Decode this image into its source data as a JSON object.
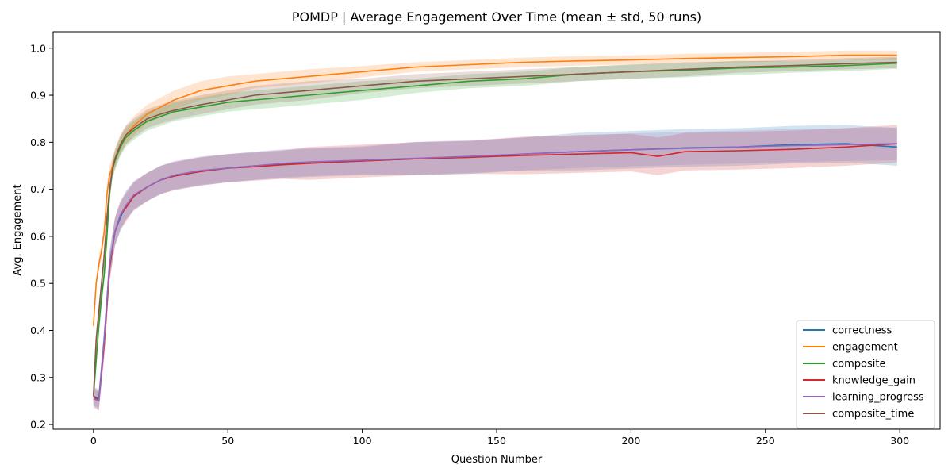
{
  "chart_data": {
    "type": "line",
    "title": "POMDP | Average Engagement Over Time (mean ± std, 50 runs)",
    "xlabel": "Question Number",
    "ylabel": "Avg. Engagement",
    "xlim": [
      -15,
      315
    ],
    "ylim": [
      0.19,
      1.035
    ],
    "xticks": [
      0,
      50,
      100,
      150,
      200,
      250,
      300
    ],
    "yticks": [
      0.2,
      0.3,
      0.4,
      0.5,
      0.6,
      0.7,
      0.8,
      0.9,
      1.0
    ],
    "grid": false,
    "legend_position": "lower-right",
    "series": [
      {
        "name": "correctness",
        "color": "#1f77b4",
        "x": [
          0,
          2,
          4,
          6,
          8,
          10,
          12,
          15,
          20,
          25,
          30,
          40,
          50,
          60,
          70,
          80,
          100,
          120,
          140,
          160,
          180,
          200,
          220,
          240,
          260,
          280,
          299
        ],
        "mean": [
          0.26,
          0.255,
          0.38,
          0.54,
          0.61,
          0.64,
          0.665,
          0.685,
          0.705,
          0.72,
          0.728,
          0.738,
          0.745,
          0.75,
          0.753,
          0.756,
          0.76,
          0.765,
          0.768,
          0.775,
          0.78,
          0.784,
          0.788,
          0.79,
          0.795,
          0.797,
          0.79
        ],
        "std": [
          0.02,
          0.02,
          0.03,
          0.03,
          0.03,
          0.03,
          0.03,
          0.03,
          0.03,
          0.03,
          0.03,
          0.03,
          0.03,
          0.03,
          0.03,
          0.03,
          0.03,
          0.035,
          0.035,
          0.035,
          0.04,
          0.04,
          0.04,
          0.04,
          0.04,
          0.04,
          0.04
        ]
      },
      {
        "name": "engagement",
        "color": "#ff7f0e",
        "x": [
          0,
          1,
          2,
          3,
          4,
          5,
          6,
          8,
          10,
          12,
          15,
          20,
          25,
          30,
          40,
          50,
          60,
          70,
          80,
          100,
          120,
          140,
          160,
          180,
          200,
          220,
          240,
          260,
          280,
          299
        ],
        "mean": [
          0.41,
          0.5,
          0.54,
          0.57,
          0.61,
          0.69,
          0.73,
          0.765,
          0.795,
          0.815,
          0.835,
          0.86,
          0.875,
          0.89,
          0.91,
          0.92,
          0.93,
          0.935,
          0.94,
          0.95,
          0.96,
          0.965,
          0.97,
          0.973,
          0.975,
          0.978,
          0.98,
          0.982,
          0.985,
          0.985
        ],
        "std": [
          0.01,
          0.01,
          0.015,
          0.015,
          0.015,
          0.02,
          0.02,
          0.02,
          0.02,
          0.02,
          0.02,
          0.02,
          0.02,
          0.02,
          0.02,
          0.02,
          0.015,
          0.015,
          0.015,
          0.012,
          0.01,
          0.01,
          0.01,
          0.01,
          0.01,
          0.01,
          0.01,
          0.01,
          0.01,
          0.01
        ]
      },
      {
        "name": "composite",
        "color": "#2ca02c",
        "x": [
          0,
          2,
          3,
          4,
          5,
          6,
          7,
          8,
          10,
          12,
          15,
          20,
          25,
          30,
          40,
          50,
          60,
          70,
          80,
          100,
          120,
          140,
          160,
          180,
          200,
          220,
          240,
          260,
          280,
          299
        ],
        "mean": [
          0.26,
          0.41,
          0.47,
          0.52,
          0.6,
          0.69,
          0.74,
          0.76,
          0.79,
          0.81,
          0.825,
          0.845,
          0.855,
          0.865,
          0.875,
          0.885,
          0.89,
          0.895,
          0.9,
          0.91,
          0.92,
          0.93,
          0.935,
          0.945,
          0.95,
          0.953,
          0.958,
          0.96,
          0.963,
          0.968
        ],
        "std": [
          0.02,
          0.02,
          0.02,
          0.02,
          0.02,
          0.02,
          0.02,
          0.02,
          0.02,
          0.02,
          0.02,
          0.02,
          0.02,
          0.02,
          0.02,
          0.02,
          0.02,
          0.02,
          0.02,
          0.02,
          0.015,
          0.015,
          0.015,
          0.015,
          0.015,
          0.015,
          0.015,
          0.012,
          0.012,
          0.012
        ]
      },
      {
        "name": "knowledge_gain",
        "color": "#d62728",
        "x": [
          0,
          2,
          4,
          6,
          8,
          10,
          12,
          15,
          20,
          25,
          30,
          40,
          50,
          60,
          70,
          80,
          100,
          120,
          140,
          160,
          180,
          200,
          210,
          220,
          240,
          260,
          280,
          299
        ],
        "mean": [
          0.26,
          0.25,
          0.37,
          0.53,
          0.61,
          0.645,
          0.66,
          0.685,
          0.705,
          0.72,
          0.728,
          0.738,
          0.745,
          0.748,
          0.752,
          0.755,
          0.76,
          0.765,
          0.768,
          0.772,
          0.775,
          0.778,
          0.77,
          0.78,
          0.782,
          0.785,
          0.79,
          0.797
        ],
        "std": [
          0.02,
          0.02,
          0.03,
          0.03,
          0.03,
          0.03,
          0.03,
          0.03,
          0.03,
          0.03,
          0.03,
          0.03,
          0.03,
          0.03,
          0.03,
          0.035,
          0.035,
          0.035,
          0.035,
          0.04,
          0.04,
          0.04,
          0.04,
          0.04,
          0.04,
          0.04,
          0.04,
          0.04
        ]
      },
      {
        "name": "learning_progress",
        "color": "#9467bd",
        "x": [
          0,
          2,
          4,
          6,
          8,
          10,
          12,
          15,
          20,
          25,
          30,
          40,
          50,
          60,
          70,
          80,
          100,
          120,
          140,
          160,
          180,
          200,
          220,
          240,
          260,
          280,
          299
        ],
        "mean": [
          0.255,
          0.25,
          0.38,
          0.54,
          0.61,
          0.645,
          0.665,
          0.688,
          0.705,
          0.72,
          0.73,
          0.74,
          0.745,
          0.75,
          0.755,
          0.758,
          0.762,
          0.766,
          0.77,
          0.775,
          0.78,
          0.784,
          0.787,
          0.79,
          0.793,
          0.795,
          0.797
        ],
        "std": [
          0.02,
          0.02,
          0.03,
          0.03,
          0.03,
          0.03,
          0.03,
          0.03,
          0.03,
          0.03,
          0.03,
          0.03,
          0.03,
          0.03,
          0.03,
          0.03,
          0.03,
          0.035,
          0.035,
          0.035,
          0.035,
          0.035,
          0.035,
          0.035,
          0.035,
          0.035,
          0.035
        ]
      },
      {
        "name": "composite_time",
        "color": "#8c564b",
        "x": [
          0,
          1,
          2,
          3,
          4,
          5,
          6,
          7,
          8,
          10,
          12,
          15,
          20,
          25,
          30,
          40,
          50,
          60,
          70,
          80,
          100,
          120,
          140,
          160,
          180,
          200,
          220,
          240,
          260,
          280,
          299
        ],
        "mean": [
          0.26,
          0.38,
          0.44,
          0.5,
          0.56,
          0.64,
          0.7,
          0.74,
          0.765,
          0.795,
          0.815,
          0.83,
          0.85,
          0.86,
          0.868,
          0.88,
          0.89,
          0.9,
          0.905,
          0.91,
          0.92,
          0.93,
          0.935,
          0.94,
          0.945,
          0.95,
          0.955,
          0.96,
          0.963,
          0.967,
          0.97
        ],
        "std": [
          0.02,
          0.02,
          0.02,
          0.02,
          0.02,
          0.02,
          0.02,
          0.02,
          0.02,
          0.02,
          0.02,
          0.02,
          0.02,
          0.02,
          0.02,
          0.02,
          0.02,
          0.02,
          0.02,
          0.02,
          0.015,
          0.015,
          0.015,
          0.015,
          0.015,
          0.015,
          0.015,
          0.012,
          0.012,
          0.012,
          0.012
        ]
      }
    ]
  }
}
